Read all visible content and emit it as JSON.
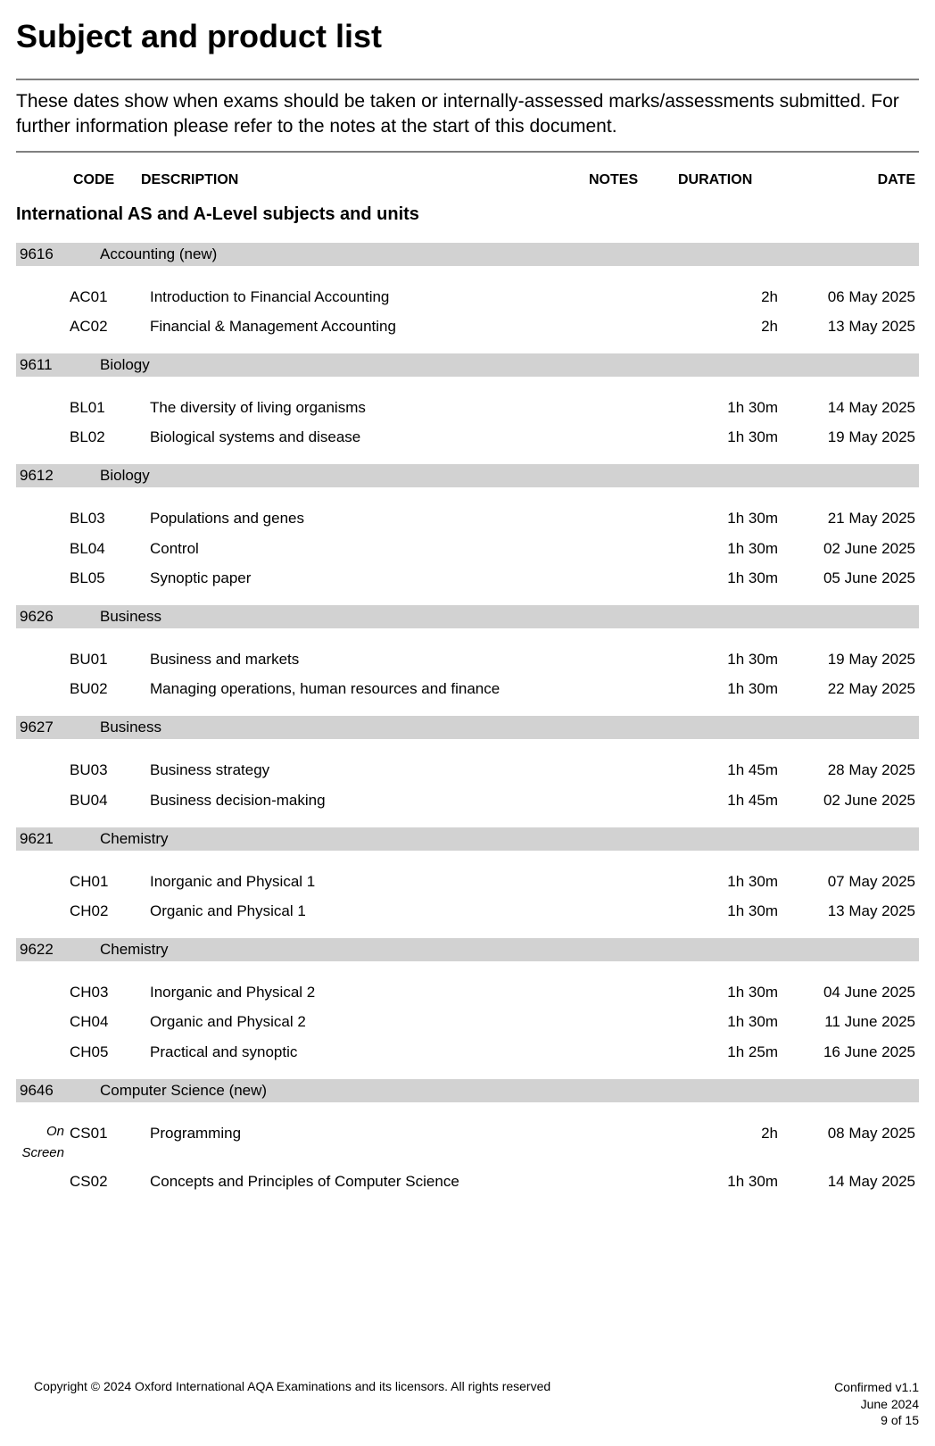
{
  "title": "Subject and product list",
  "intro": "These dates show when exams should be taken or internally-assessed marks/assessments submitted.  For further information please refer to the notes at the start of this document.",
  "headers": {
    "code": "CODE",
    "description": "DESCRIPTION",
    "notes": "NOTES",
    "duration": "DURATION",
    "date": "DATE"
  },
  "section_title": "International AS and A-Level subjects and units",
  "subjects": [
    {
      "code": "9616",
      "name": "Accounting (new)",
      "units": [
        {
          "note": "",
          "code": "AC01",
          "desc": "Introduction to Financial Accounting",
          "notes": "",
          "duration": "2h",
          "date": "06 May 2025"
        },
        {
          "note": "",
          "code": "AC02",
          "desc": "Financial & Management Accounting",
          "notes": "",
          "duration": "2h",
          "date": "13 May 2025"
        }
      ]
    },
    {
      "code": "9611",
      "name": "Biology",
      "units": [
        {
          "note": "",
          "code": "BL01",
          "desc": "The diversity of living organisms",
          "notes": "",
          "duration": "1h 30m",
          "date": "14 May 2025"
        },
        {
          "note": "",
          "code": "BL02",
          "desc": "Biological systems and disease",
          "notes": "",
          "duration": "1h 30m",
          "date": "19 May 2025"
        }
      ]
    },
    {
      "code": "9612",
      "name": "Biology",
      "units": [
        {
          "note": "",
          "code": "BL03",
          "desc": "Populations and genes",
          "notes": "",
          "duration": "1h 30m",
          "date": "21 May 2025"
        },
        {
          "note": "",
          "code": "BL04",
          "desc": "Control",
          "notes": "",
          "duration": "1h 30m",
          "date": "02 June 2025"
        },
        {
          "note": "",
          "code": "BL05",
          "desc": "Synoptic paper",
          "notes": "",
          "duration": "1h 30m",
          "date": "05 June 2025"
        }
      ]
    },
    {
      "code": "9626",
      "name": "Business",
      "units": [
        {
          "note": "",
          "code": "BU01",
          "desc": "Business and markets",
          "notes": "",
          "duration": "1h 30m",
          "date": "19 May 2025"
        },
        {
          "note": "",
          "code": "BU02",
          "desc": "Managing operations, human resources and finance",
          "notes": "",
          "duration": "1h 30m",
          "date": "22 May 2025"
        }
      ]
    },
    {
      "code": "9627",
      "name": "Business",
      "units": [
        {
          "note": "",
          "code": "BU03",
          "desc": "Business strategy",
          "notes": "",
          "duration": "1h 45m",
          "date": "28 May 2025"
        },
        {
          "note": "",
          "code": "BU04",
          "desc": "Business decision-making",
          "notes": "",
          "duration": "1h 45m",
          "date": "02 June 2025"
        }
      ]
    },
    {
      "code": "9621",
      "name": "Chemistry",
      "units": [
        {
          "note": "",
          "code": "CH01",
          "desc": "Inorganic and Physical 1",
          "notes": "",
          "duration": "1h 30m",
          "date": "07 May 2025"
        },
        {
          "note": "",
          "code": "CH02",
          "desc": "Organic and Physical 1",
          "notes": "",
          "duration": "1h 30m",
          "date": "13 May 2025"
        }
      ]
    },
    {
      "code": "9622",
      "name": "Chemistry",
      "units": [
        {
          "note": "",
          "code": "CH03",
          "desc": "Inorganic and Physical 2",
          "notes": "",
          "duration": "1h 30m",
          "date": "04 June 2025"
        },
        {
          "note": "",
          "code": "CH04",
          "desc": "Organic and Physical 2",
          "notes": "",
          "duration": "1h 30m",
          "date": "11 June 2025"
        },
        {
          "note": "",
          "code": "CH05",
          "desc": "Practical and synoptic",
          "notes": "",
          "duration": "1h 25m",
          "date": "16 June 2025"
        }
      ]
    },
    {
      "code": "9646",
      "name": "Computer Science (new)",
      "units": [
        {
          "note": "On Screen",
          "code": "CS01",
          "desc": "Programming",
          "notes": "",
          "duration": "2h",
          "date": "08 May 2025"
        },
        {
          "note": "",
          "code": "CS02",
          "desc": "Concepts and Principles of Computer Science",
          "notes": "",
          "duration": "1h 30m",
          "date": "14 May 2025"
        }
      ]
    }
  ],
  "footer": {
    "copyright": "Copyright © 2024 Oxford International AQA Examinations and its licensors. All rights reserved",
    "version": "Confirmed v1.1",
    "date": "June 2024",
    "page": "9 of 15"
  },
  "colors": {
    "subject_header_bg": "#d2d2d2",
    "hr_color": "#808080",
    "text": "#000000",
    "bg": "#ffffff"
  }
}
